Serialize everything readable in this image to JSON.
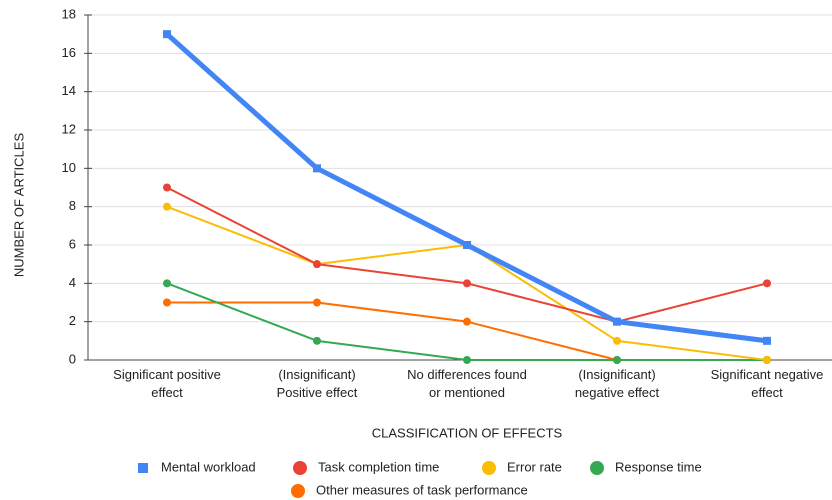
{
  "chart_data": {
    "type": "line",
    "x_label": "CLASSIFICATION OF EFFECTS",
    "y_label": "NUMBER OF ARTICLES",
    "categories": [
      "Significant positive\neffect",
      "(Insignificant)\nPositive effect",
      "No differences found\nor mentioned",
      "(Insignificant)\nnegative effect",
      "Significant negative\neffect"
    ],
    "series": [
      {
        "name": "Mental workload",
        "color": "#4285f4",
        "marker": "square",
        "values": [
          17,
          10,
          6,
          2,
          1
        ]
      },
      {
        "name": "Task completion time",
        "color": "#ea4335",
        "marker": "circle",
        "values": [
          9,
          5,
          4,
          2,
          4
        ]
      },
      {
        "name": "Error rate",
        "color": "#fbbc04",
        "marker": "circle",
        "values": [
          8,
          5,
          6,
          1,
          0
        ]
      },
      {
        "name": "Response time",
        "color": "#34a853",
        "marker": "circle",
        "values": [
          4,
          1,
          0,
          0,
          0
        ]
      },
      {
        "name": "Other measures of task performance",
        "color": "#ff6d01",
        "marker": "circle",
        "values": [
          3,
          3,
          2,
          0,
          0
        ]
      }
    ],
    "ylim": [
      0,
      18
    ],
    "yticks": [
      0,
      2,
      4,
      6,
      8,
      10,
      12,
      14,
      16,
      18
    ],
    "grid": true
  }
}
